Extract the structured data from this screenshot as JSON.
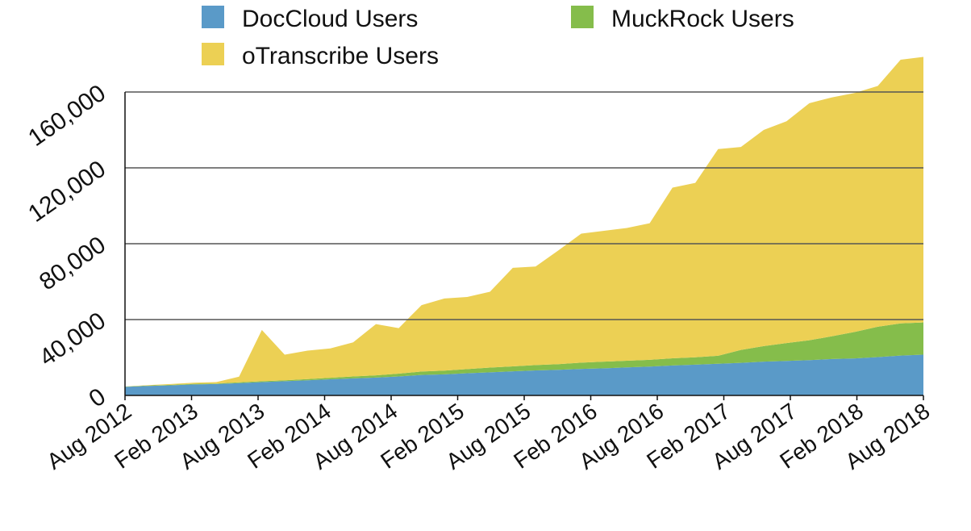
{
  "chart_data": {
    "type": "area",
    "stacked": true,
    "title": "",
    "xlabel": "",
    "ylabel": "",
    "ylim": [
      0,
      160000
    ],
    "y_ticks": [
      0,
      40000,
      80000,
      120000,
      160000
    ],
    "y_tick_labels": [
      "0",
      "40,000",
      "80,000",
      "120,000",
      "160,000"
    ],
    "x_tick_labels": [
      "Aug 2012",
      "Feb 2013",
      "Aug 2013",
      "Feb 2014",
      "Aug 2014",
      "Feb 2015",
      "Aug 2015",
      "Feb 2016",
      "Aug 2016",
      "Feb 2017",
      "Aug 2017",
      "Feb 2018",
      "Aug 2018"
    ],
    "grid": true,
    "legend_position": "top",
    "colors": {
      "doccloud": "#5a9ac8",
      "muckrock": "#85bd4b",
      "otranscribe": "#ecd054"
    },
    "series": [
      {
        "name": "DocCloud Users",
        "color": "#5a9ac8",
        "values": [
          4500,
          5000,
          5300,
          5800,
          6000,
          6500,
          7000,
          7500,
          8000,
          8500,
          9000,
          9400,
          10000,
          10800,
          11100,
          11700,
          12200,
          12700,
          13200,
          13500,
          14000,
          14300,
          14800,
          15200,
          15800,
          16200,
          16700,
          17200,
          17800,
          18200,
          18600,
          19200,
          19500,
          20200,
          21000,
          21500
        ]
      },
      {
        "name": "MuckRock Users",
        "color": "#85bd4b",
        "values": [
          200,
          200,
          300,
          300,
          300,
          400,
          500,
          500,
          600,
          800,
          1000,
          1200,
          1500,
          1800,
          2000,
          2200,
          2500,
          2600,
          2800,
          3000,
          3300,
          3500,
          3500,
          3600,
          3800,
          3900,
          4200,
          6800,
          8200,
          9400,
          10500,
          12000,
          14000,
          16000,
          17000,
          17000
        ]
      },
      {
        "name": "oTranscribe Users",
        "color": "#ecd054",
        "values": [
          0,
          200,
          400,
          600,
          700,
          3000,
          27000,
          13500,
          15000,
          15500,
          18000,
          27000,
          24000,
          35000,
          38000,
          38000,
          40000,
          52000,
          52000,
          60000,
          68000,
          69000,
          70000,
          72000,
          90000,
          92000,
          109000,
          107000,
          114000,
          117000,
          125000,
          126000,
          126000,
          127000,
          139000,
          140000
        ]
      }
    ]
  }
}
